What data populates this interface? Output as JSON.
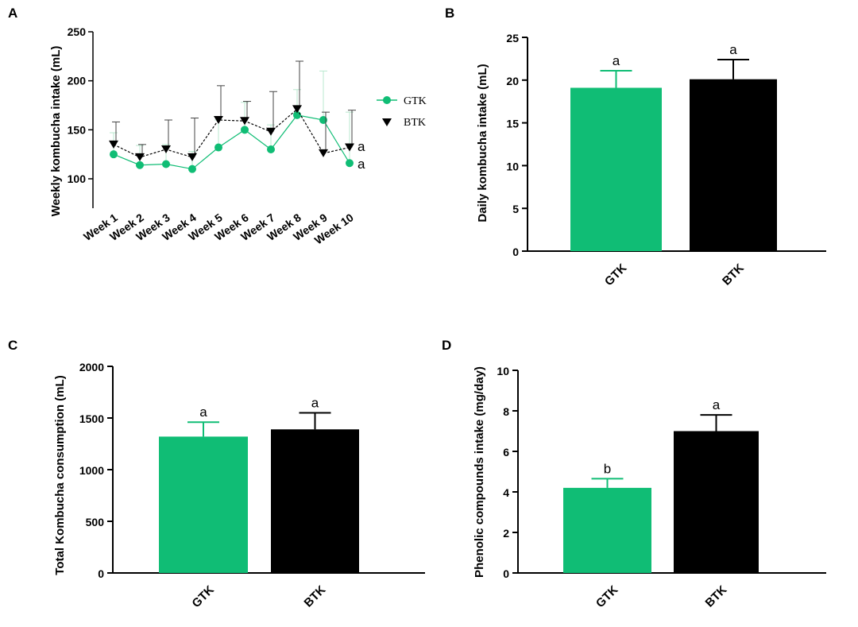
{
  "colors": {
    "gtk": "#10bd75",
    "btk": "#000000"
  },
  "chart_data": [
    {
      "panel": "A",
      "type": "line",
      "ylabel": "Weekly kombucha intake (mL)",
      "ylim": [
        70,
        250
      ],
      "yticks": [
        100,
        150,
        200,
        250
      ],
      "categories": [
        "Week 1",
        "Week 2",
        "Week 3",
        "Week 4",
        "Week 5",
        "Week 6",
        "Week 7",
        "Week 8",
        "Week 9",
        "Week 10"
      ],
      "series": [
        {
          "name": "GTK",
          "marker": "circle",
          "color": "#10bd75",
          "values": [
            125,
            114,
            115,
            110,
            132,
            150,
            130,
            165,
            160,
            116
          ],
          "errors": [
            22,
            20,
            20,
            18,
            28,
            28,
            25,
            26,
            50,
            52
          ]
        },
        {
          "name": "BTK",
          "marker": "triangle-down",
          "color": "#000000",
          "values": [
            135,
            122,
            130,
            122,
            160,
            159,
            148,
            171,
            126,
            132
          ],
          "errors": [
            23,
            13,
            30,
            40,
            35,
            20,
            41,
            49,
            42,
            38
          ]
        }
      ],
      "annotations": [
        "a",
        "a"
      ]
    },
    {
      "panel": "B",
      "type": "bar",
      "ylabel": "Daily kombucha intake (mL)",
      "ylim": [
        0,
        25
      ],
      "yticks": [
        0,
        5,
        10,
        15,
        20,
        25
      ],
      "categories": [
        "GTK",
        "BTK"
      ],
      "values": [
        19.1,
        20.1
      ],
      "errors": [
        2.0,
        2.3
      ],
      "letters": [
        "a",
        "a"
      ]
    },
    {
      "panel": "C",
      "type": "bar",
      "ylabel": "Total Kombucha consumption (mL)",
      "ylim": [
        0,
        2000
      ],
      "yticks": [
        0,
        500,
        1000,
        1500,
        2000
      ],
      "categories": [
        "GTK",
        "BTK"
      ],
      "values": [
        1320,
        1390
      ],
      "errors": [
        140,
        160
      ],
      "letters": [
        "a",
        "a"
      ]
    },
    {
      "panel": "D",
      "type": "bar",
      "ylabel": "Phenolic compounds intake (mg/day)",
      "ylim": [
        0,
        10
      ],
      "yticks": [
        0,
        2,
        4,
        6,
        8,
        10
      ],
      "categories": [
        "GTK",
        "BTK"
      ],
      "values": [
        4.2,
        7.0
      ],
      "errors": [
        0.45,
        0.8
      ],
      "letters": [
        "b",
        "a"
      ]
    }
  ]
}
